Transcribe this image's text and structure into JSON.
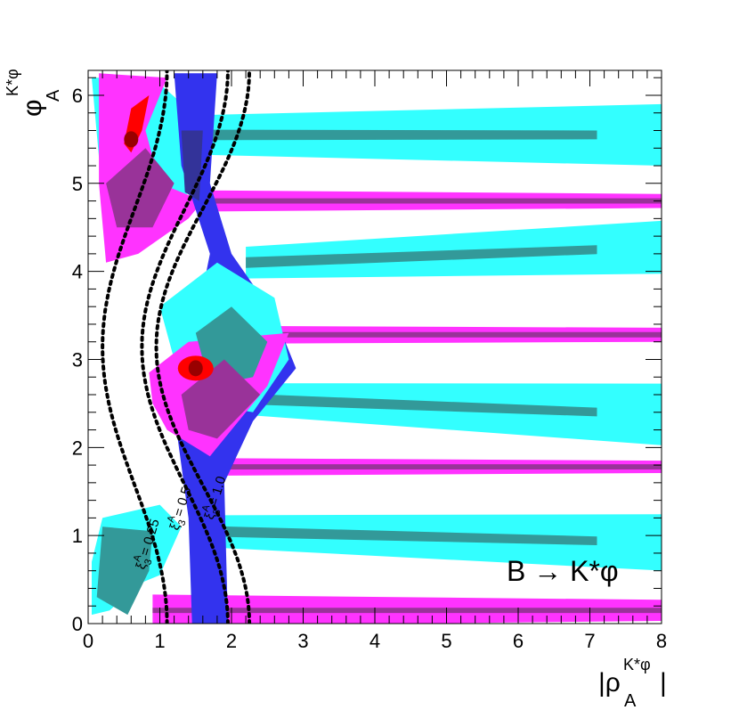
{
  "chart_data": {
    "type": "contour",
    "title": "",
    "annotation": "B → K*φ",
    "xlabel": {
      "main": "|ρ",
      "sup": "K*φ",
      "sub": "A",
      "end": "|"
    },
    "ylabel": {
      "main": "φ",
      "sup": "K*φ",
      "sub": "A"
    },
    "xlim": [
      0,
      8
    ],
    "ylim": [
      0,
      6.283
    ],
    "xticks": [
      "0",
      "1",
      "2",
      "3",
      "4",
      "5",
      "6",
      "7",
      "8"
    ],
    "yticks": [
      "0",
      "1",
      "2",
      "3",
      "4",
      "5",
      "6"
    ],
    "grid": false,
    "colors": {
      "cyan": "#33ffff",
      "magenta": "#ff33ff",
      "blue": "#3333ee",
      "teal_overlap": "#339999",
      "purple_overlap": "#993399",
      "navy_overlap": "#333399",
      "red": "#ff0000",
      "dark_red": "#990000",
      "curve": "#000000"
    },
    "curves": [
      {
        "label": "ξ₃ᴬ = 0.25",
        "center": 0.55,
        "amplitude": 0.45
      },
      {
        "label": "ξ₃ᴬ = 0.5",
        "center": 1.35,
        "amplitude": 0.6
      },
      {
        "label": "ξ₃ᴬ = 1.0",
        "center": 1.6,
        "amplitude": 0.65
      }
    ],
    "curve_labels": [
      "ξ",
      "A",
      "3",
      "= 0.25",
      "= 0.5",
      "= 1.0"
    ],
    "best_fit_points": [
      {
        "x": 0.6,
        "y": 5.5
      },
      {
        "x": 1.5,
        "y": 2.9
      }
    ]
  }
}
